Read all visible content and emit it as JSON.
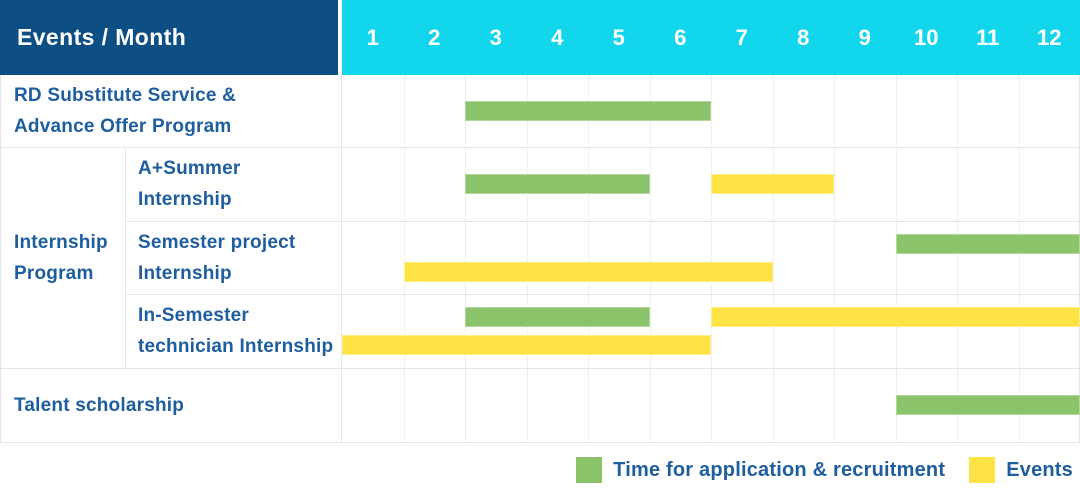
{
  "labels": {
    "corner": "Events / Month"
  },
  "colors": {
    "header_navy": "#0d4e84",
    "header_cyan": "#12d6ec",
    "application": "#8bc36a",
    "event": "#fde343",
    "text_blue": "#1e5d9e",
    "border": "#e6e6e6"
  },
  "chart_data": {
    "type": "gantt",
    "title": "Events / Month",
    "months": [
      "1",
      "2",
      "3",
      "4",
      "5",
      "6",
      "7",
      "8",
      "9",
      "10",
      "11",
      "12"
    ],
    "group": {
      "label": "Internship Program",
      "label_lines": [
        "Internship",
        "Program"
      ],
      "row_span": [
        1,
        3
      ]
    },
    "rows": [
      {
        "id": "rd-substitute-service",
        "label": "RD Substitute Service & Advance Offer Program",
        "label_lines": [
          "RD Substitute Service &",
          "Advance Offer Program"
        ],
        "indent": false,
        "bars": [
          {
            "kind": "application",
            "start": 3,
            "end": 6,
            "line": 0
          }
        ]
      },
      {
        "id": "a-plus-summer-internship",
        "label": "A+Summer Internship",
        "label_lines": [
          "A+Summer",
          "Internship"
        ],
        "indent": true,
        "bars": [
          {
            "kind": "application",
            "start": 3,
            "end": 5,
            "line": 0
          },
          {
            "kind": "event",
            "start": 7,
            "end": 8,
            "line": 0
          }
        ]
      },
      {
        "id": "semester-project-internship",
        "label": "Semester project Internship",
        "label_lines": [
          "Semester project",
          "Internship"
        ],
        "indent": true,
        "bars": [
          {
            "kind": "application",
            "start": 10,
            "end": 12,
            "line": 1
          },
          {
            "kind": "event",
            "start": 2,
            "end": 7,
            "line": 2
          }
        ]
      },
      {
        "id": "in-semester-technician-internship",
        "label": "In-Semester technician Internship",
        "label_lines": [
          "In-Semester",
          "technician Internship"
        ],
        "indent": true,
        "bars": [
          {
            "kind": "application",
            "start": 3,
            "end": 5,
            "line": 1
          },
          {
            "kind": "event",
            "start": 7,
            "end": 12,
            "line": 1
          },
          {
            "kind": "event",
            "start": 1,
            "end": 6,
            "line": 2
          }
        ]
      },
      {
        "id": "talent-scholarship",
        "label": "Talent scholarship",
        "label_lines": [
          "Talent scholarship"
        ],
        "indent": false,
        "bars": [
          {
            "kind": "application",
            "start": 10,
            "end": 12,
            "line": 0
          }
        ]
      }
    ],
    "legend": [
      {
        "key": "application",
        "label": "Time for application & recruitment"
      },
      {
        "key": "event",
        "label": "Events"
      }
    ]
  }
}
